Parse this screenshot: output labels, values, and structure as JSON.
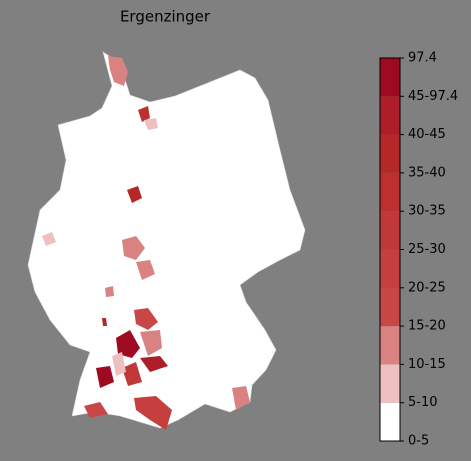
{
  "title": "Ergenzinger",
  "colorbar": {
    "ticks": [
      "0-5",
      "5-10",
      "10-15",
      "15-20",
      "20-25",
      "25-30",
      "30-35",
      "35-40",
      "40-45",
      "45-97.4",
      "97.4"
    ],
    "colors": [
      "#ffffff",
      "#efc0c0",
      "#da8282",
      "#c94646",
      "#c53f3f",
      "#c13838",
      "#bc3030",
      "#b52828",
      "#ad1e28",
      "#9e0a22"
    ]
  }
}
